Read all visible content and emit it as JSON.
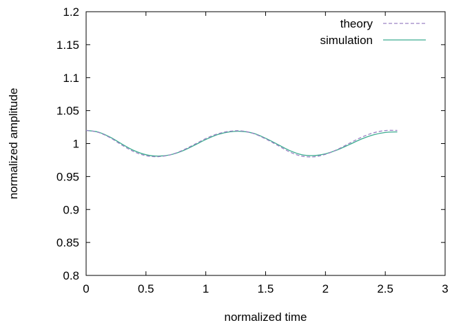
{
  "chart_data": {
    "type": "line",
    "title": "",
    "xlabel": "normalized time",
    "ylabel": "normalized amplitude",
    "xlim": [
      0,
      3
    ],
    "ylim": [
      0.8,
      1.2
    ],
    "x_ticks": [
      0,
      0.5,
      1,
      1.5,
      2,
      2.5,
      3
    ],
    "x_tick_labels": [
      "0",
      "0.5",
      "1",
      "1.5",
      "2",
      "2.5",
      "3"
    ],
    "y_ticks": [
      0.8,
      0.85,
      0.9,
      0.95,
      1.0,
      1.05,
      1.1,
      1.15,
      1.2
    ],
    "y_tick_labels": [
      "0.8",
      "0.85",
      "0.9",
      "0.95",
      "1",
      "1.05",
      "1.1",
      "1.15",
      "1.2"
    ],
    "grid": false,
    "legend_position": "top-right",
    "series": [
      {
        "name": "theory",
        "color": "#9a82c4",
        "style": "dashed",
        "x": [
          0,
          0.1,
          0.2,
          0.3,
          0.4,
          0.5,
          0.6,
          0.7,
          0.8,
          0.9,
          1.0,
          1.1,
          1.2,
          1.3,
          1.4,
          1.5,
          1.6,
          1.7,
          1.8,
          1.9,
          2.0,
          2.1,
          2.2,
          2.3,
          2.4,
          2.5,
          2.6
        ],
        "y": [
          1.02,
          1.0171,
          1.0089,
          0.9976,
          0.9876,
          0.9816,
          0.9801,
          0.9828,
          0.9893,
          0.9983,
          1.0076,
          1.0148,
          1.0187,
          1.0192,
          1.0151,
          1.007,
          0.9973,
          0.9874,
          0.981,
          0.9799,
          0.9837,
          0.9911,
          1.0004,
          1.0094,
          1.0162,
          1.0197,
          1.0199
        ]
      },
      {
        "name": "simulation",
        "color": "#3aaa8f",
        "style": "solid",
        "x": [
          0,
          0.1,
          0.2,
          0.3,
          0.4,
          0.5,
          0.6,
          0.7,
          0.8,
          0.9,
          1.0,
          1.1,
          1.2,
          1.3,
          1.4,
          1.5,
          1.6,
          1.7,
          1.8,
          1.9,
          2.0,
          2.1,
          2.2,
          2.3,
          2.4,
          2.5,
          2.6
        ],
        "y": [
          1.02,
          1.0175,
          1.0098,
          0.9992,
          0.9894,
          0.9831,
          0.981,
          0.9828,
          0.9885,
          0.997,
          1.0062,
          1.0137,
          1.0178,
          1.0185,
          1.0155,
          1.008,
          0.9988,
          0.9895,
          0.9832,
          0.9818,
          0.9845,
          0.9905,
          0.9985,
          1.0068,
          1.0132,
          1.0168,
          1.0177
        ]
      }
    ]
  }
}
